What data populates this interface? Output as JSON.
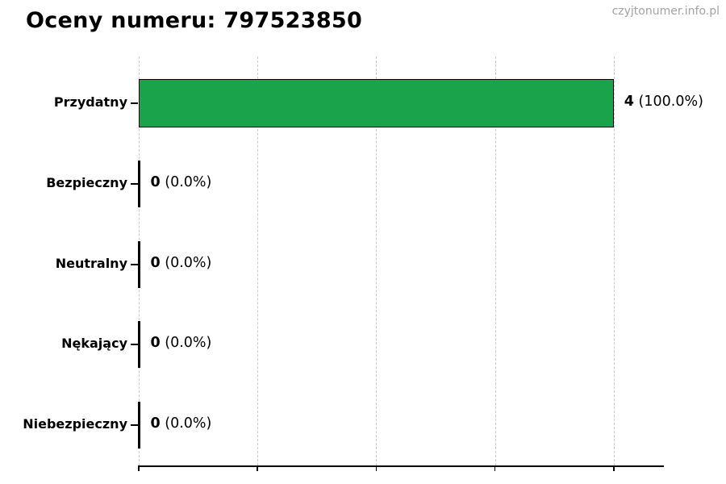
{
  "page": {
    "title": "Oceny numeru: 797523850",
    "watermark": "czyjtonumer.info.pl"
  },
  "colors": {
    "bar_fill": "#1aa34a",
    "bar_border": "#000000",
    "grid": "#cacaca",
    "axis": "#000000",
    "watermark_text": "#a3a3a3",
    "text": "#000000"
  },
  "chart_data": {
    "type": "bar",
    "orientation": "horizontal",
    "title": "Oceny numeru: 797523850",
    "categories": [
      "Przydatny",
      "Bezpieczny",
      "Neutralny",
      "Nękający",
      "Niebezpieczny"
    ],
    "values": [
      4,
      0,
      0,
      0,
      0
    ],
    "value_labels": [
      "4",
      "0",
      "0",
      "0",
      "0"
    ],
    "percent_labels": [
      "(100.0%)",
      "(0.0%)",
      "(0.0%)",
      "(0.0%)",
      "(0.0%)"
    ],
    "xlabel": "",
    "ylabel": "",
    "xlim": [
      0,
      4.42
    ],
    "xticks": [
      0,
      1,
      2,
      3,
      4
    ],
    "xtick_labels": [
      "",
      "",
      "",
      "",
      ""
    ],
    "grid": "vertical-dashed",
    "legend": "none"
  }
}
